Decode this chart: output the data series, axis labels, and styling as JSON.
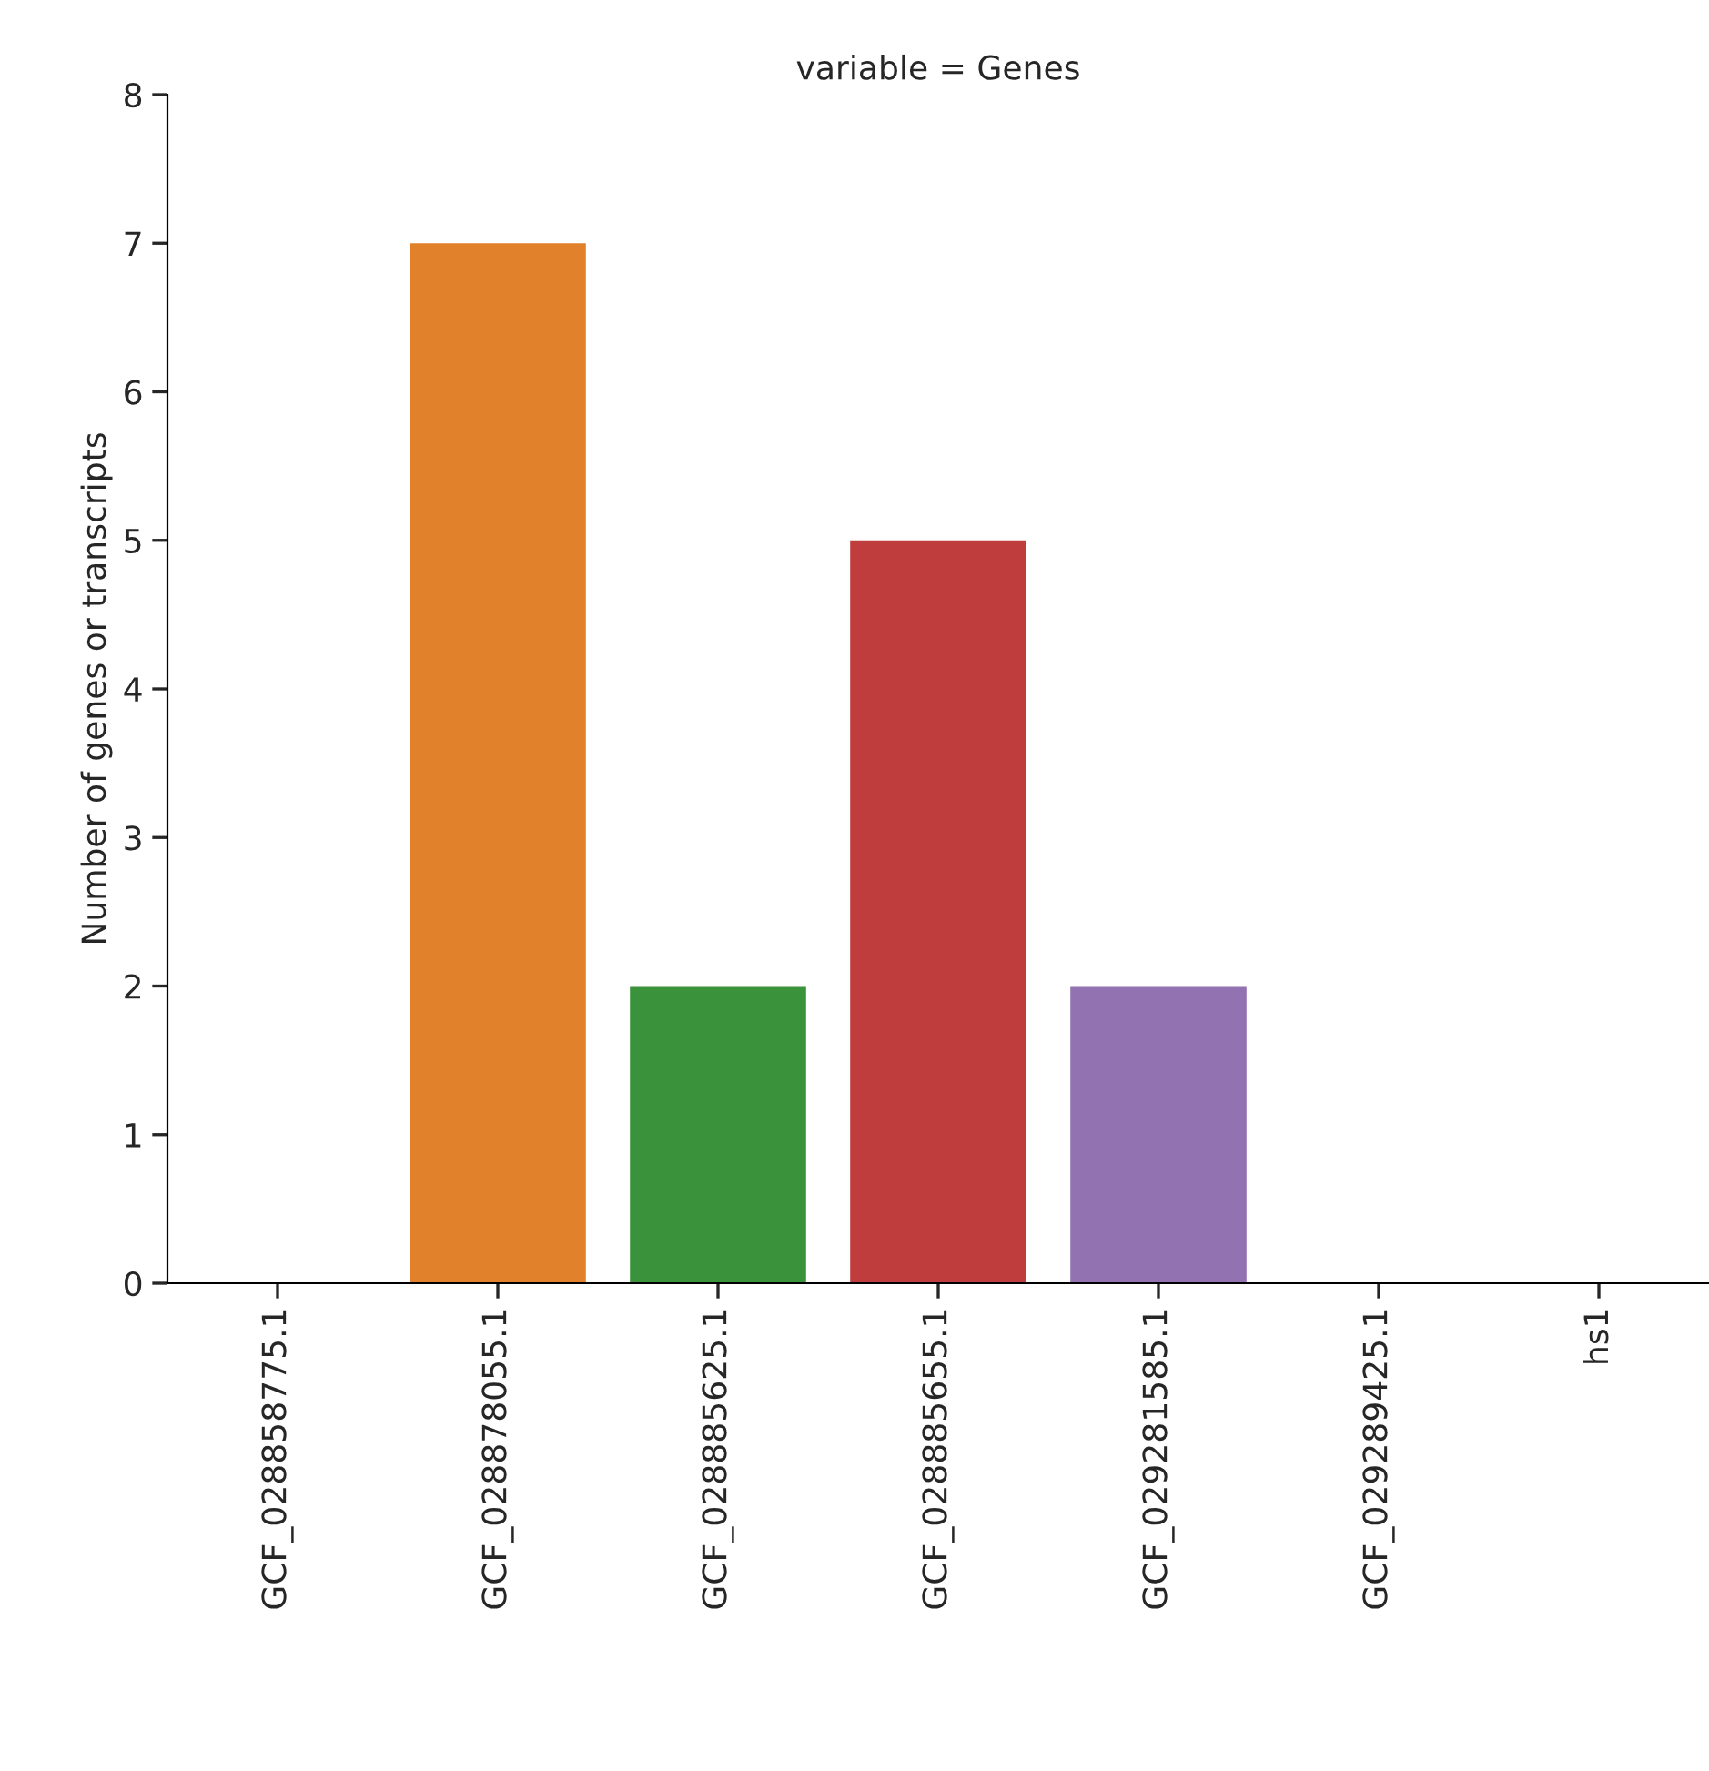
{
  "chart_data": {
    "type": "bar",
    "title": "variable = Genes",
    "ylabel": "Number of genes or transcripts",
    "categories": [
      "GCF_028858775.1",
      "GCF_028878055.1",
      "GCF_028885625.1",
      "GCF_028885655.1",
      "GCF_029281585.1",
      "GCF_029289425.1",
      "hs1"
    ],
    "values": [
      0,
      7,
      2,
      5,
      2,
      0,
      0
    ],
    "colors": [
      "#3274a1",
      "#e1812c",
      "#3a923a",
      "#c03d3e",
      "#9372b2",
      "#845b53",
      "#d684bd"
    ],
    "ylim": [
      0,
      8
    ],
    "yticks": [
      0,
      1,
      2,
      3,
      4,
      5,
      6,
      7,
      8
    ],
    "grid": false,
    "legend": false
  }
}
